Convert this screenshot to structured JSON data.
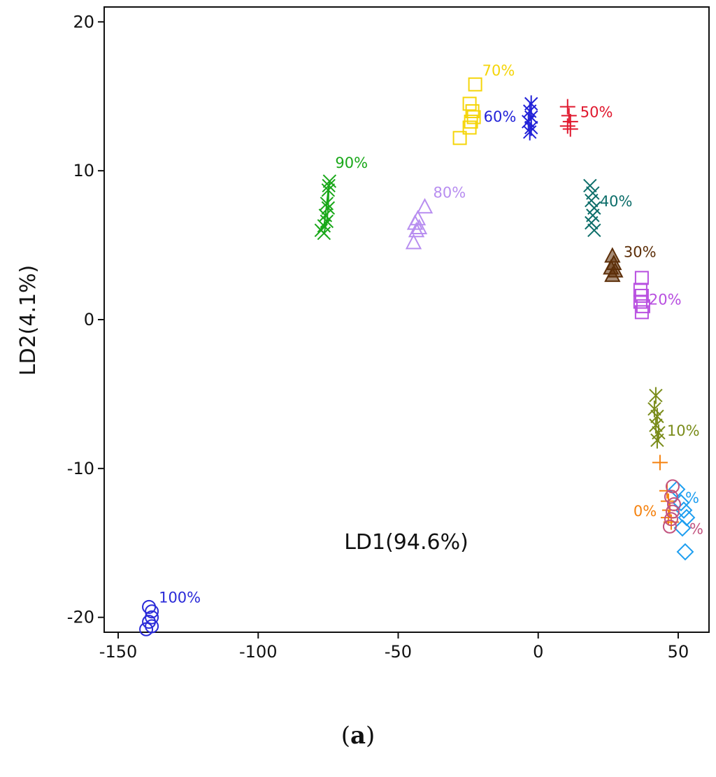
{
  "chart_data": {
    "type": "scatter",
    "title": "",
    "xlabel": "LD1(94.6%)",
    "ylabel": "LD2(4.1%)",
    "xlim": [
      -155,
      61
    ],
    "ylim": [
      -21,
      21
    ],
    "xticks": [
      -150,
      -100,
      -50,
      0,
      50
    ],
    "yticks": [
      -20,
      -10,
      0,
      10,
      20
    ],
    "series": [
      {
        "name": "100%",
        "label": "100%",
        "color": "#2a2ad8",
        "marker": "circle",
        "connect": false,
        "label_at": [
          -135.5,
          -19.0
        ],
        "points": [
          [
            -139,
            -19.3
          ],
          [
            -138,
            -19.6
          ],
          [
            -138,
            -20.0
          ],
          [
            -139,
            -20.3
          ],
          [
            -138,
            -20.6
          ],
          [
            -140,
            -20.8
          ]
        ]
      },
      {
        "name": "90%",
        "label": "90%",
        "color": "#1aa81a",
        "marker": "x",
        "connect": true,
        "label_at": [
          -72.5,
          10.2
        ],
        "points": [
          [
            -74.5,
            9.3
          ],
          [
            -75,
            8.7
          ],
          [
            -75.5,
            7.8
          ],
          [
            -76,
            7.0
          ],
          [
            -76.5,
            6.3
          ],
          [
            -77.5,
            6.0
          ],
          [
            -76.5,
            5.8
          ],
          [
            -75.5,
            6.6
          ],
          [
            -75,
            7.5
          ],
          [
            -74.8,
            9.0
          ]
        ]
      },
      {
        "name": "80%",
        "label": "80%",
        "color": "#b88ef0",
        "marker": "triangle",
        "connect": false,
        "label_at": [
          -37.5,
          8.2
        ],
        "points": [
          [
            -40.5,
            7.6
          ],
          [
            -43,
            6.8
          ],
          [
            -44,
            6.5
          ],
          [
            -42.5,
            6.2
          ],
          [
            -43.5,
            6.0
          ],
          [
            -44.5,
            5.2
          ]
        ]
      },
      {
        "name": "70%",
        "label": "70%",
        "color": "#f5d50a",
        "marker": "square",
        "connect": false,
        "label_at": [
          -20,
          16.4
        ],
        "points": [
          [
            -22.5,
            15.8
          ],
          [
            -24.5,
            14.5
          ],
          [
            -23.5,
            14.0
          ],
          [
            -23,
            13.6
          ],
          [
            -24,
            13.3
          ],
          [
            -24.5,
            12.9
          ],
          [
            -28,
            12.2
          ]
        ]
      },
      {
        "name": "60%",
        "label": "60%",
        "color": "#2222d8",
        "marker": "star",
        "connect": false,
        "label_at": [
          -19.5,
          13.3
        ],
        "points": [
          [
            -2.5,
            14.5
          ],
          [
            -3,
            14.0
          ],
          [
            -2.5,
            13.6
          ],
          [
            -3.5,
            13.3
          ],
          [
            -2.5,
            12.9
          ],
          [
            -3,
            12.6
          ]
        ]
      },
      {
        "name": "50%",
        "label": "50%",
        "color": "#e0182e",
        "marker": "plus",
        "connect": false,
        "label_at": [
          15,
          13.6
        ],
        "points": [
          [
            10.5,
            14.3
          ],
          [
            11,
            13.7
          ],
          [
            11.5,
            13.3
          ],
          [
            10.5,
            13.0
          ],
          [
            11.5,
            12.8
          ]
        ]
      },
      {
        "name": "40%",
        "label": "40%",
        "color": "#0d6e6a",
        "marker": "x",
        "connect": false,
        "label_at": [
          22,
          7.6
        ],
        "points": [
          [
            18.5,
            9.0
          ],
          [
            19.5,
            8.5
          ],
          [
            19,
            8.0
          ],
          [
            20,
            7.5
          ],
          [
            19.5,
            7.0
          ],
          [
            19,
            6.5
          ],
          [
            20,
            6.0
          ]
        ]
      },
      {
        "name": "30%",
        "label": "30%",
        "color": "#5c2e08",
        "marker": "triangle-filled",
        "connect": false,
        "label_at": [
          30.5,
          4.2
        ],
        "points": [
          [
            26.5,
            4.3
          ],
          [
            27,
            3.8
          ],
          [
            26,
            3.5
          ],
          [
            27.5,
            3.3
          ],
          [
            26.5,
            3.0
          ]
        ]
      },
      {
        "name": "20%",
        "label": "20%",
        "color": "#b84fe0",
        "marker": "square",
        "connect": false,
        "label_at": [
          39.5,
          1.0
        ],
        "points": [
          [
            37,
            2.8
          ],
          [
            36.5,
            2.0
          ],
          [
            37,
            1.6
          ],
          [
            36.5,
            1.2
          ],
          [
            37.5,
            0.9
          ],
          [
            37,
            0.5
          ]
        ]
      },
      {
        "name": "10%",
        "label": "10%",
        "color": "#7a8c1a",
        "marker": "star",
        "connect": false,
        "label_at": [
          46,
          -7.8
        ],
        "points": [
          [
            42,
            -5.1
          ],
          [
            41.5,
            -6.0
          ],
          [
            42.5,
            -6.5
          ],
          [
            42,
            -7.1
          ],
          [
            43,
            -7.6
          ],
          [
            42.5,
            -8.1
          ]
        ]
      },
      {
        "name": "0%",
        "label": "0%",
        "color": "#f5820f",
        "marker": "plus",
        "connect": false,
        "label_at": [
          34,
          -13.2
        ],
        "points": [
          [
            43.5,
            -9.6
          ],
          [
            46,
            -11.5
          ],
          [
            46.5,
            -12.2
          ],
          [
            47,
            -12.8
          ],
          [
            46.5,
            -13.3
          ],
          [
            47.5,
            -13.6
          ]
        ]
      },
      {
        "name": "diamond group",
        "label": "%",
        "color": "#1d9ef0",
        "marker": "diamond",
        "connect": false,
        "label_at": [
          52.5,
          -12.3
        ],
        "points": [
          [
            49.5,
            -11.4
          ],
          [
            51,
            -12.3
          ],
          [
            52,
            -12.8
          ],
          [
            53,
            -13.3
          ],
          [
            51.5,
            -14.0
          ],
          [
            52.5,
            -15.6
          ]
        ]
      },
      {
        "name": "circle group",
        "label": "%",
        "color": "#c2537f",
        "marker": "circle",
        "connect": false,
        "label_at": [
          54,
          -14.4
        ],
        "points": [
          [
            48,
            -11.2
          ],
          [
            47.5,
            -11.9
          ],
          [
            48.5,
            -12.4
          ],
          [
            48,
            -12.9
          ],
          [
            47.5,
            -13.4
          ],
          [
            47,
            -13.9
          ]
        ]
      }
    ]
  },
  "caption": {
    "open": "(",
    "letter": "a",
    "close": ")"
  }
}
